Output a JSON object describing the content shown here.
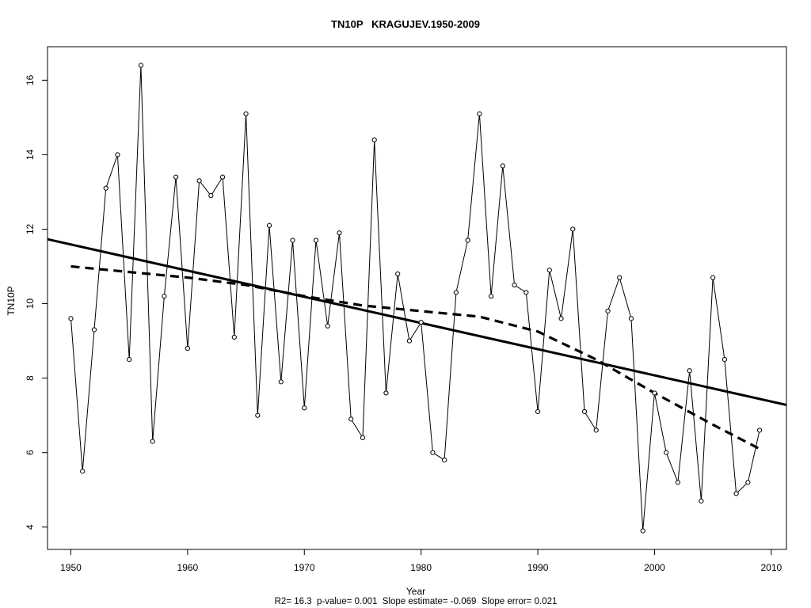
{
  "chart_data": {
    "type": "line",
    "title": "TN10P   KRAGUJEV.1950-2009",
    "xlabel": "Year",
    "ylabel": "TN10P",
    "footer": "R2= 16.3  p-value= 0.001  Slope estimate= -0.069  Slope error= 0.021",
    "xlim": [
      1948,
      2011.3
    ],
    "ylim": [
      3.4,
      16.9
    ],
    "x_ticks": [
      1950,
      1960,
      1970,
      1980,
      1990,
      2000,
      2010
    ],
    "y_ticks": [
      4,
      6,
      8,
      10,
      12,
      14,
      16
    ],
    "grid": false,
    "x": [
      1950,
      1951,
      1952,
      1953,
      1954,
      1955,
      1956,
      1957,
      1958,
      1959,
      1960,
      1961,
      1962,
      1963,
      1964,
      1965,
      1966,
      1967,
      1968,
      1969,
      1970,
      1971,
      1972,
      1973,
      1974,
      1975,
      1976,
      1977,
      1978,
      1979,
      1980,
      1981,
      1982,
      1983,
      1984,
      1985,
      1986,
      1987,
      1988,
      1989,
      1990,
      1991,
      1992,
      1993,
      1994,
      1995,
      1996,
      1997,
      1998,
      1999,
      2000,
      2001,
      2002,
      2003,
      2004,
      2005,
      2006,
      2007,
      2008,
      2009
    ],
    "series": [
      {
        "values": [
          9.6,
          5.5,
          9.3,
          13.1,
          14.0,
          8.5,
          16.4,
          6.3,
          10.2,
          13.4,
          8.8,
          13.3,
          12.9,
          13.4,
          9.1,
          15.1,
          7.0,
          12.1,
          7.9,
          11.7,
          7.2,
          11.7,
          9.4,
          11.9,
          6.9,
          6.4,
          14.4,
          7.6,
          10.8,
          9.0,
          9.5,
          6.0,
          5.8,
          10.3,
          11.7,
          15.1,
          10.2,
          13.7,
          10.5,
          10.3,
          7.1,
          10.9,
          9.6,
          12.0,
          7.1,
          6.6,
          9.8,
          10.7,
          9.6,
          3.9,
          7.6,
          6.0,
          5.2,
          8.2,
          4.7,
          10.7,
          8.5,
          4.9,
          5.2,
          6.6
        ]
      }
    ],
    "trend_line": {
      "x": [
        1948,
        2011.3
      ],
      "y": [
        11.73,
        7.28
      ]
    },
    "smooth_curve": {
      "x": [
        1950,
        1955,
        1960,
        1965,
        1970,
        1975,
        1980,
        1985,
        1990,
        1995,
        2000,
        2005,
        2009
      ],
      "y": [
        11.0,
        10.85,
        10.7,
        10.5,
        10.2,
        9.95,
        9.8,
        9.65,
        9.25,
        8.5,
        7.6,
        6.75,
        6.1
      ]
    }
  }
}
